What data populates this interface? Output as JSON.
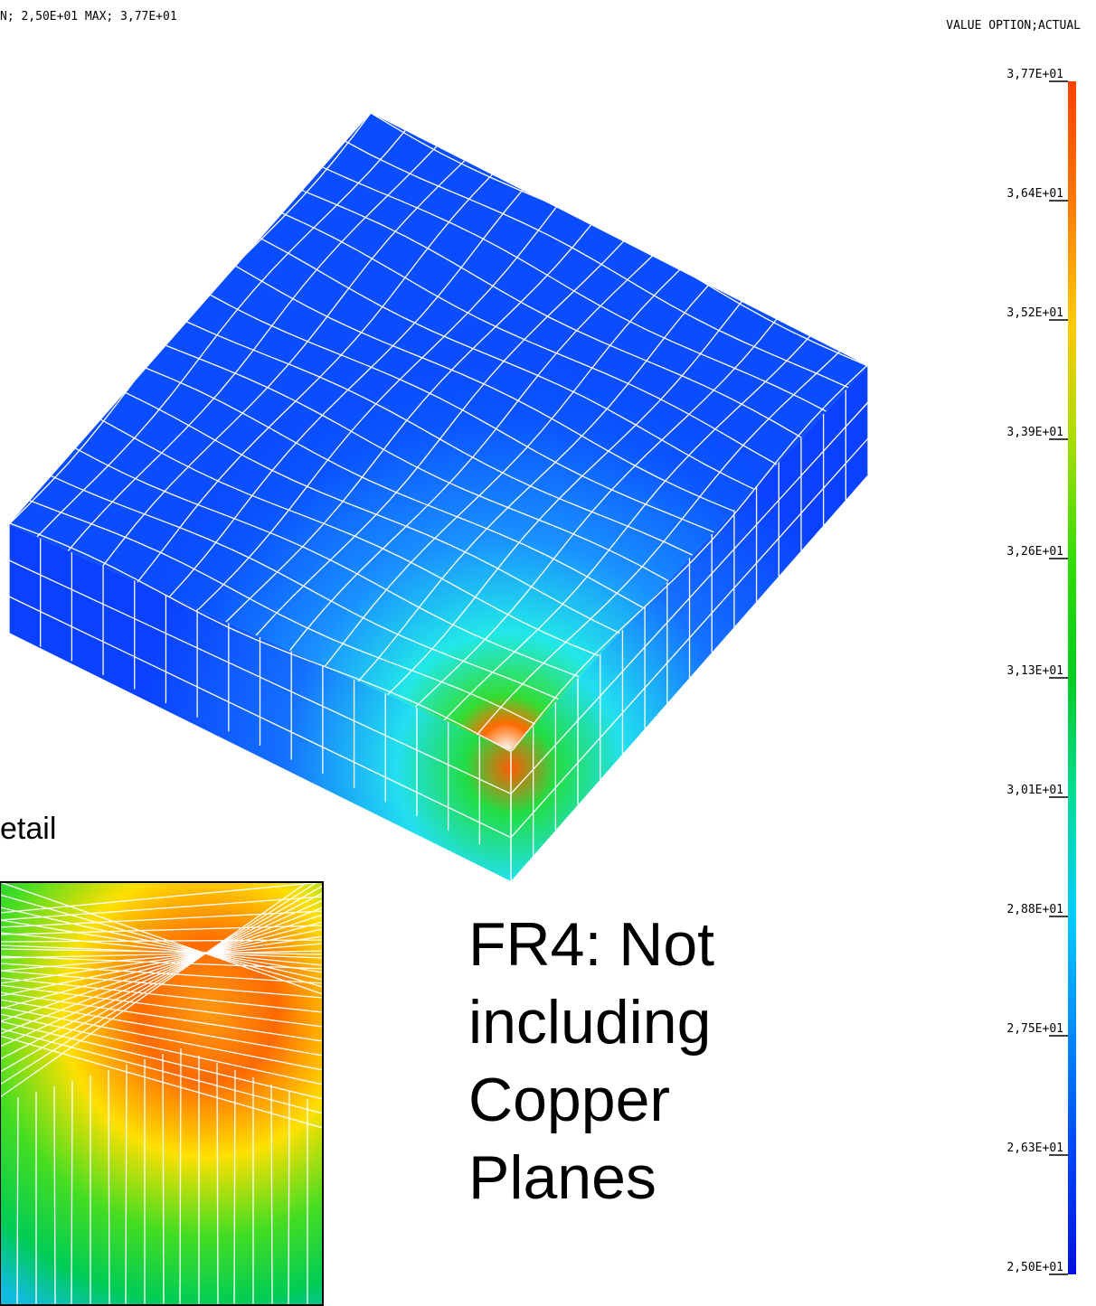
{
  "header": {
    "minmax": "N; 2,50E+01 MAX; 3,77E+01",
    "value_option": "VALUE OPTION;ACTUAL"
  },
  "legend": {
    "labels": [
      "3,77E+01",
      "3,64E+01",
      "3,52E+01",
      "3,39E+01",
      "3,26E+01",
      "3,13E+01",
      "3,01E+01",
      "2,88E+01",
      "2,75E+01",
      "2,63E+01",
      "2,50E+01"
    ]
  },
  "detail_label": "etail",
  "caption": {
    "lines": [
      "FR4: Not",
      "including",
      "Copper",
      "Planes"
    ]
  }
}
